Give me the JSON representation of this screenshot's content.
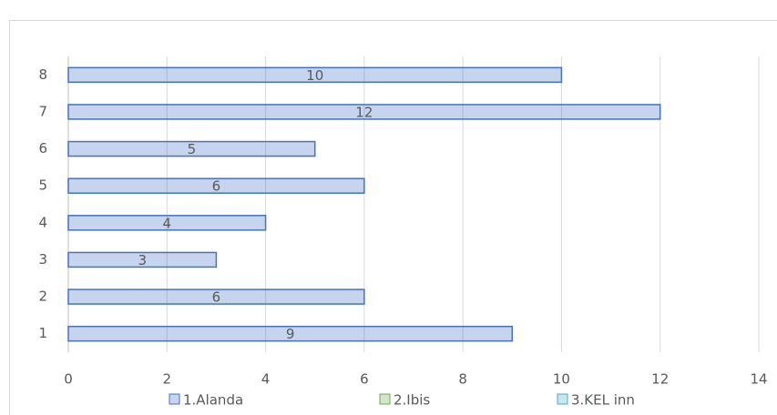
{
  "chart_data": {
    "type": "barh",
    "categories": [
      "1",
      "2",
      "3",
      "4",
      "5",
      "6",
      "7",
      "8"
    ],
    "series": [
      {
        "name": "1.Alanda",
        "color": "#4472c4",
        "values": [
          9,
          6,
          3,
          4,
          6,
          5,
          12,
          10
        ]
      },
      {
        "name": "2.Ibis",
        "color": "#70ad47",
        "values": [
          null,
          null,
          null,
          null,
          null,
          null,
          null,
          null
        ]
      },
      {
        "name": "3.KEL inn",
        "color": "#4bacc6",
        "values": [
          null,
          null,
          null,
          null,
          null,
          null,
          null,
          null
        ]
      }
    ],
    "xlim": [
      0,
      14
    ],
    "xticks": [
      0,
      2,
      4,
      6,
      8,
      10,
      12,
      14
    ],
    "grid": true
  }
}
